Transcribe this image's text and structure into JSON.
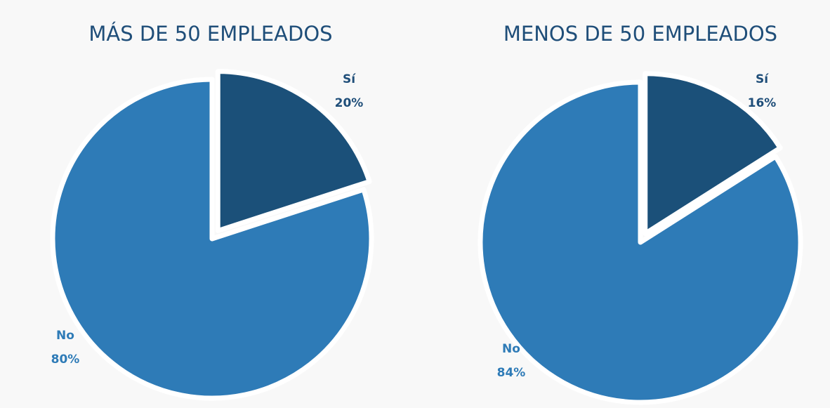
{
  "chart_data": [
    {
      "type": "pie",
      "title": "MÁS DE 50 EMPLEADOS",
      "categories": [
        "Sí",
        "No"
      ],
      "values": [
        20,
        80
      ],
      "value_labels": [
        "20%",
        "80%"
      ],
      "colors": [
        "#1b5079",
        "#2e7bb7"
      ]
    },
    {
      "type": "pie",
      "title": "MENOS DE 50 EMPLEADOS",
      "categories": [
        "Sí",
        "No"
      ],
      "values": [
        16,
        84
      ],
      "value_labels": [
        "16%",
        "84%"
      ],
      "colors": [
        "#1b5079",
        "#2e7bb7"
      ]
    }
  ]
}
